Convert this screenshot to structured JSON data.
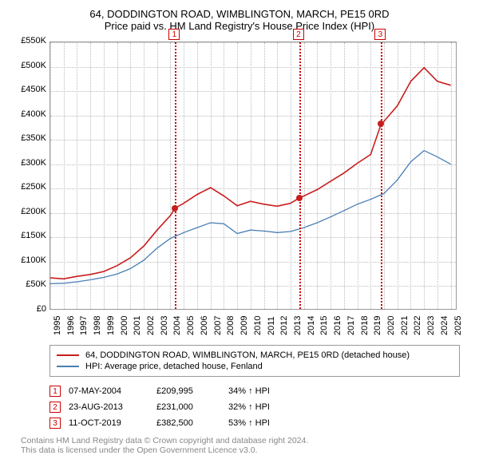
{
  "title": "64, DODDINGTON ROAD, WIMBLINGTON, MARCH, PE15 0RD",
  "subtitle": "Price paid vs. HM Land Registry's House Price Index (HPI)",
  "chart": {
    "type": "line",
    "background_color": "#ffffff",
    "grid_color": "#bbbbbb",
    "border_color": "#999999",
    "x_min": 1995,
    "x_max": 2025.5,
    "y_min": 0,
    "y_max": 550000,
    "y_tick_step": 50000,
    "y_tick_labels": [
      "£0",
      "£50K",
      "£100K",
      "£150K",
      "£200K",
      "£250K",
      "£300K",
      "£350K",
      "£400K",
      "£450K",
      "£500K",
      "£550K"
    ],
    "x_ticks": [
      1995,
      1996,
      1997,
      1998,
      1999,
      2000,
      2001,
      2002,
      2003,
      2004,
      2005,
      2006,
      2007,
      2008,
      2009,
      2010,
      2011,
      2012,
      2013,
      2014,
      2015,
      2016,
      2017,
      2018,
      2019,
      2020,
      2021,
      2022,
      2023,
      2024,
      2025
    ],
    "tick_fontsize": 11,
    "series": [
      {
        "name": "property",
        "label": "64, DODDINGTON ROAD, WIMBLINGTON, MARCH, PE15 0RD (detached house)",
        "color": "#c81e1e",
        "line_width": 1.6,
        "x": [
          1995,
          1996,
          1997,
          1998,
          1999,
          2000,
          2001,
          2002,
          2003,
          2004,
          2004.35,
          2005,
          2006,
          2007,
          2008,
          2009,
          2010,
          2011,
          2012,
          2013,
          2013.65,
          2014,
          2015,
          2016,
          2017,
          2018,
          2019,
          2019.78,
          2020,
          2021,
          2022,
          2023,
          2024,
          2025
        ],
        "y": [
          67000,
          65000,
          70000,
          74000,
          80000,
          92000,
          108000,
          132000,
          165000,
          195000,
          209995,
          220000,
          238000,
          252000,
          235000,
          215000,
          224000,
          218000,
          214000,
          220000,
          231000,
          235000,
          248000,
          265000,
          282000,
          302000,
          320000,
          382500,
          388000,
          420000,
          470000,
          498000,
          470000,
          462000
        ]
      },
      {
        "name": "hpi",
        "label": "HPI: Average price, detached house, Fenland",
        "color": "#4a7fb5",
        "line_width": 1.3,
        "x": [
          1995,
          1996,
          1997,
          1998,
          1999,
          2000,
          2001,
          2002,
          2003,
          2004,
          2005,
          2006,
          2007,
          2008,
          2009,
          2010,
          2011,
          2012,
          2013,
          2014,
          2015,
          2016,
          2017,
          2018,
          2019,
          2020,
          2021,
          2022,
          2023,
          2024,
          2025
        ],
        "y": [
          55000,
          56000,
          59000,
          63000,
          68000,
          75000,
          86000,
          103000,
          128000,
          148000,
          160000,
          170000,
          180000,
          178000,
          158000,
          165000,
          163000,
          160000,
          162000,
          170000,
          180000,
          192000,
          205000,
          218000,
          228000,
          240000,
          268000,
          305000,
          328000,
          315000,
          300000
        ]
      }
    ],
    "sale_markers": [
      {
        "index": "1",
        "x": 2004.35,
        "y": 209995
      },
      {
        "index": "2",
        "x": 2013.65,
        "y": 231000
      },
      {
        "index": "3",
        "x": 2019.78,
        "y": 382500
      }
    ],
    "marker_line_color": "#cc0000",
    "marker_box_border": "#cc0000"
  },
  "legend": {
    "items": [
      {
        "color": "#c81e1e",
        "label": "64, DODDINGTON ROAD, WIMBLINGTON, MARCH, PE15 0RD (detached house)"
      },
      {
        "color": "#4a7fb5",
        "label": "HPI: Average price, detached house, Fenland"
      }
    ]
  },
  "sales": [
    {
      "idx": "1",
      "date": "07-MAY-2004",
      "price": "£209,995",
      "pct": "34%",
      "arrow": "↑",
      "vs": "HPI"
    },
    {
      "idx": "2",
      "date": "23-AUG-2013",
      "price": "£231,000",
      "pct": "32%",
      "arrow": "↑",
      "vs": "HPI"
    },
    {
      "idx": "3",
      "date": "11-OCT-2019",
      "price": "£382,500",
      "pct": "53%",
      "arrow": "↑",
      "vs": "HPI"
    }
  ],
  "footer_line1": "Contains HM Land Registry data © Crown copyright and database right 2024.",
  "footer_line2": "This data is licensed under the Open Government Licence v3.0."
}
